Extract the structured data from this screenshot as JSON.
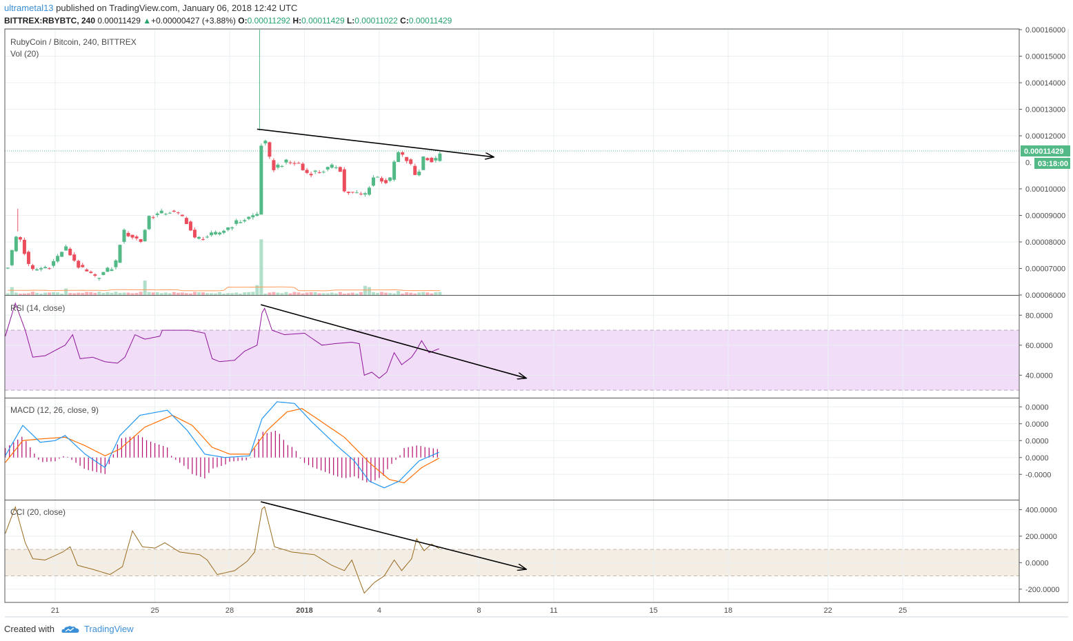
{
  "header": {
    "author": "ultrametal13",
    "published_text": " published on TradingView.com, January 06, 2018 12:42 UTC",
    "symbol": "BITTREX:RBYBTC, 240",
    "last": "0.00011429",
    "change_arrow": "▲",
    "change": "+0.00000427 (+3.88%)",
    "o_label": "O:",
    "o": "0.00011292",
    "h_label": "H:",
    "h": "0.00011429",
    "l_label": "L:",
    "l": "0.00011022",
    "c_label": "C:",
    "c": "0.00011429"
  },
  "footer": {
    "created_with": "Created with",
    "brand": "TradingView",
    "logo_icon": "tradingview-cloud-icon"
  },
  "colors": {
    "up": "#53b987",
    "down": "#eb4d5c",
    "rsi": "#8e1599",
    "macd": "#2196f3",
    "signal": "#ff6d00",
    "hist": "#b20a6e",
    "cci": "#996a1f",
    "grid": "#e9eff2",
    "rsi_band": "#f2ddf9",
    "cci_band": "#f3ede4",
    "last_price_bg": "#53b987",
    "trendline": "#000000"
  },
  "chart_data": [
    {
      "type": "candlestick",
      "title": "RubyCoin / Bitcoin, 240, BITTREX",
      "volume_label": "Vol (20)",
      "ylim": [
        6e-05,
        0.00016
      ],
      "y_ticks": [
        "0.00016000",
        "0.00015000",
        "0.00014000",
        "0.00013000",
        "0.00012000",
        "0.00010000",
        "0.00009000",
        "0.00008000",
        "0.00007000",
        "0.00006000"
      ],
      "last_price_label": "0.00011429",
      "countdown_label": "03:18:00",
      "x_ticks": [
        "21",
        "25",
        "28",
        "2018",
        "4",
        "8",
        "11",
        "15",
        "18",
        "22",
        "25"
      ],
      "x_tick_days": [
        0,
        4,
        7,
        10,
        13,
        17,
        20,
        24,
        27,
        31,
        34
      ],
      "anchors": [
        {
          "d": -1.9,
          "p": 7.1e-05
        },
        {
          "d": -1.5,
          "p": 8.4e-05
        },
        {
          "d": -1.0,
          "p": 6.9e-05
        },
        {
          "d": -0.2,
          "p": 7.1e-05
        },
        {
          "d": 0.4,
          "p": 7.8e-05
        },
        {
          "d": 1.0,
          "p": 7e-05
        },
        {
          "d": 1.6,
          "p": 6.65e-05
        },
        {
          "d": 2.4,
          "p": 7.1e-05
        },
        {
          "d": 2.7,
          "p": 8.4e-05
        },
        {
          "d": 3.5,
          "p": 8e-05
        },
        {
          "d": 3.7,
          "p": 8.95e-05
        },
        {
          "d": 4.6,
          "p": 9.15e-05
        },
        {
          "d": 5.2,
          "p": 8.9e-05
        },
        {
          "d": 5.6,
          "p": 8.1e-05
        },
        {
          "d": 6.5,
          "p": 8.3e-05
        },
        {
          "d": 7.2,
          "p": 8.7e-05
        },
        {
          "d": 8.1,
          "p": 9.05e-05
        },
        {
          "d": 8.3,
          "p": 0.000122
        },
        {
          "d": 8.7,
          "p": 0.0001075
        },
        {
          "d": 9.2,
          "p": 0.00011
        },
        {
          "d": 9.8,
          "p": 0.0001095
        },
        {
          "d": 10.0,
          "p": 0.000106
        },
        {
          "d": 10.6,
          "p": 0.0001065
        },
        {
          "d": 11.4,
          "p": 0.000109
        },
        {
          "d": 11.6,
          "p": 9.9e-05
        },
        {
          "d": 12.4,
          "p": 9.75e-05
        },
        {
          "d": 12.8,
          "p": 0.000105
        },
        {
          "d": 13.4,
          "p": 0.000102
        },
        {
          "d": 13.7,
          "p": 0.000114
        },
        {
          "d": 14.2,
          "p": 0.00011
        },
        {
          "d": 14.5,
          "p": 0.000104
        },
        {
          "d": 14.8,
          "p": 0.000113
        },
        {
          "d": 15.2,
          "p": 0.0001095
        },
        {
          "d": 15.45,
          "p": 0.0001143
        }
      ],
      "volume_spikes": [
        {
          "d": 8.2,
          "v": 0.85
        },
        {
          "d": 8.1,
          "v": 0.15
        },
        {
          "d": 3.6,
          "v": 0.22
        },
        {
          "d": -1.8,
          "v": 0.12
        },
        {
          "d": 0.4,
          "v": 0.1
        },
        {
          "d": 12.4,
          "v": 0.14
        },
        {
          "d": 12.6,
          "v": 0.12
        },
        {
          "d": 13.8,
          "v": 0.06
        }
      ],
      "trendline": {
        "from": {
          "d": 8.1,
          "p": 0.0001225
        },
        "to": {
          "d": 17.6,
          "p": 0.000112
        }
      }
    },
    {
      "type": "line",
      "title": "RSI (14, close)",
      "y_ticks": [
        "80.0000",
        "60.0000",
        "40.0000"
      ],
      "ylim": [
        25,
        93
      ],
      "band": [
        30,
        70
      ],
      "series": [
        {
          "anchors": [
            {
              "d": -2,
              "v": 66
            },
            {
              "d": -1.6,
              "v": 88
            },
            {
              "d": -1.2,
              "v": 70
            },
            {
              "d": -0.9,
              "v": 52
            },
            {
              "d": -0.4,
              "v": 53
            },
            {
              "d": 0.4,
              "v": 60
            },
            {
              "d": 0.7,
              "v": 67
            },
            {
              "d": 1.0,
              "v": 51
            },
            {
              "d": 1.5,
              "v": 52
            },
            {
              "d": 2.0,
              "v": 49
            },
            {
              "d": 2.5,
              "v": 48
            },
            {
              "d": 2.8,
              "v": 52
            },
            {
              "d": 3.2,
              "v": 67
            },
            {
              "d": 3.6,
              "v": 64
            },
            {
              "d": 4.2,
              "v": 66
            },
            {
              "d": 4.3,
              "v": 70
            },
            {
              "d": 5.0,
              "v": 70
            },
            {
              "d": 5.4,
              "v": 70
            },
            {
              "d": 6.0,
              "v": 68
            },
            {
              "d": 6.3,
              "v": 51
            },
            {
              "d": 6.6,
              "v": 49
            },
            {
              "d": 7.2,
              "v": 50
            },
            {
              "d": 7.6,
              "v": 56
            },
            {
              "d": 8.1,
              "v": 60
            },
            {
              "d": 8.35,
              "v": 87
            },
            {
              "d": 8.7,
              "v": 70
            },
            {
              "d": 9.2,
              "v": 67
            },
            {
              "d": 10.0,
              "v": 68
            },
            {
              "d": 10.7,
              "v": 60
            },
            {
              "d": 11.2,
              "v": 61
            },
            {
              "d": 11.9,
              "v": 62
            },
            {
              "d": 12.2,
              "v": 61
            },
            {
              "d": 12.4,
              "v": 40
            },
            {
              "d": 12.7,
              "v": 42
            },
            {
              "d": 13.0,
              "v": 38
            },
            {
              "d": 13.3,
              "v": 42
            },
            {
              "d": 13.6,
              "v": 55
            },
            {
              "d": 13.9,
              "v": 47
            },
            {
              "d": 14.3,
              "v": 52
            },
            {
              "d": 14.5,
              "v": 57
            },
            {
              "d": 14.7,
              "v": 63
            },
            {
              "d": 15.0,
              "v": 55
            },
            {
              "d": 15.3,
              "v": 57
            },
            {
              "d": 15.45,
              "v": 58
            }
          ]
        }
      ],
      "trendline": {
        "from": {
          "d": 8.25,
          "v": 87
        },
        "to": {
          "d": 18.9,
          "v": 38
        }
      }
    },
    {
      "type": "line",
      "title": "MACD (12, 26, close, 9)",
      "y_ticks": [
        "0.0000",
        "0.0000",
        "0.0000",
        "0.0000",
        "-0.0000"
      ],
      "ylim": [
        -1.3,
        1.7
      ],
      "series": [
        {
          "name": "macd",
          "anchors": [
            {
              "d": -2,
              "v": 0.0
            },
            {
              "d": -1.3,
              "v": 0.9
            },
            {
              "d": -0.6,
              "v": 0.4
            },
            {
              "d": 0.0,
              "v": 0.45
            },
            {
              "d": 0.4,
              "v": 0.6
            },
            {
              "d": 1.2,
              "v": 0.05
            },
            {
              "d": 2.0,
              "v": -0.35
            },
            {
              "d": 2.6,
              "v": 0.6
            },
            {
              "d": 3.4,
              "v": 1.2
            },
            {
              "d": 4.5,
              "v": 1.35
            },
            {
              "d": 5.3,
              "v": 0.75
            },
            {
              "d": 6.0,
              "v": 0.05
            },
            {
              "d": 6.8,
              "v": -0.05
            },
            {
              "d": 7.8,
              "v": 0.0
            },
            {
              "d": 8.3,
              "v": 1.1
            },
            {
              "d": 8.9,
              "v": 1.6
            },
            {
              "d": 9.6,
              "v": 1.55
            },
            {
              "d": 10.3,
              "v": 1.0
            },
            {
              "d": 11.3,
              "v": 0.3
            },
            {
              "d": 12.0,
              "v": -0.15
            },
            {
              "d": 12.6,
              "v": -0.75
            },
            {
              "d": 13.2,
              "v": -0.95
            },
            {
              "d": 13.8,
              "v": -0.75
            },
            {
              "d": 14.6,
              "v": -0.15
            },
            {
              "d": 15.45,
              "v": 0.12
            }
          ]
        },
        {
          "name": "signal",
          "anchors": [
            {
              "d": -2,
              "v": -0.2
            },
            {
              "d": -1.3,
              "v": 0.45
            },
            {
              "d": -0.6,
              "v": 0.5
            },
            {
              "d": 0.4,
              "v": 0.55
            },
            {
              "d": 1.2,
              "v": 0.3
            },
            {
              "d": 2.0,
              "v": 0.0
            },
            {
              "d": 2.6,
              "v": 0.2
            },
            {
              "d": 3.6,
              "v": 0.85
            },
            {
              "d": 4.7,
              "v": 1.2
            },
            {
              "d": 5.5,
              "v": 0.9
            },
            {
              "d": 6.3,
              "v": 0.25
            },
            {
              "d": 7.0,
              "v": 0.05
            },
            {
              "d": 7.8,
              "v": 0.05
            },
            {
              "d": 8.5,
              "v": 0.75
            },
            {
              "d": 9.3,
              "v": 1.3
            },
            {
              "d": 9.9,
              "v": 1.4
            },
            {
              "d": 10.6,
              "v": 1.05
            },
            {
              "d": 11.6,
              "v": 0.55
            },
            {
              "d": 12.6,
              "v": -0.2
            },
            {
              "d": 13.4,
              "v": -0.7
            },
            {
              "d": 14.0,
              "v": -0.8
            },
            {
              "d": 14.7,
              "v": -0.35
            },
            {
              "d": 15.45,
              "v": -0.05
            }
          ]
        }
      ]
    },
    {
      "type": "line",
      "title": "CCI (20, close)",
      "y_ticks": [
        "400.0000",
        "200.0000",
        "0.0000",
        "-200.0000"
      ],
      "ylim": [
        -300,
        470
      ],
      "band": [
        -100,
        100
      ],
      "series": [
        {
          "anchors": [
            {
              "d": -2,
              "v": 220
            },
            {
              "d": -1.6,
              "v": 420
            },
            {
              "d": -1.2,
              "v": 150
            },
            {
              "d": -0.9,
              "v": 30
            },
            {
              "d": -0.4,
              "v": 20
            },
            {
              "d": 0.3,
              "v": 80
            },
            {
              "d": 0.6,
              "v": 120
            },
            {
              "d": 0.9,
              "v": -20
            },
            {
              "d": 1.5,
              "v": -50
            },
            {
              "d": 2.2,
              "v": -90
            },
            {
              "d": 2.7,
              "v": -30
            },
            {
              "d": 3.1,
              "v": 240
            },
            {
              "d": 3.5,
              "v": 120
            },
            {
              "d": 4.0,
              "v": 110
            },
            {
              "d": 4.4,
              "v": 150
            },
            {
              "d": 5.0,
              "v": 80
            },
            {
              "d": 5.8,
              "v": 60
            },
            {
              "d": 6.1,
              "v": 20
            },
            {
              "d": 6.5,
              "v": -90
            },
            {
              "d": 7.2,
              "v": -60
            },
            {
              "d": 7.7,
              "v": 10
            },
            {
              "d": 8.0,
              "v": 80
            },
            {
              "d": 8.35,
              "v": 460
            },
            {
              "d": 8.8,
              "v": 120
            },
            {
              "d": 9.5,
              "v": 80
            },
            {
              "d": 10.4,
              "v": 60
            },
            {
              "d": 11.1,
              "v": -20
            },
            {
              "d": 11.6,
              "v": -60
            },
            {
              "d": 11.9,
              "v": 20
            },
            {
              "d": 12.4,
              "v": -230
            },
            {
              "d": 12.8,
              "v": -150
            },
            {
              "d": 13.2,
              "v": -100
            },
            {
              "d": 13.6,
              "v": 20
            },
            {
              "d": 13.9,
              "v": -60
            },
            {
              "d": 14.3,
              "v": 30
            },
            {
              "d": 14.5,
              "v": 180
            },
            {
              "d": 14.8,
              "v": 90
            },
            {
              "d": 15.1,
              "v": 140
            },
            {
              "d": 15.45,
              "v": 100
            }
          ]
        }
      ],
      "trendline": {
        "from": {
          "d": 8.25,
          "v": 460
        },
        "to": {
          "d": 18.9,
          "v": -50
        }
      }
    }
  ]
}
